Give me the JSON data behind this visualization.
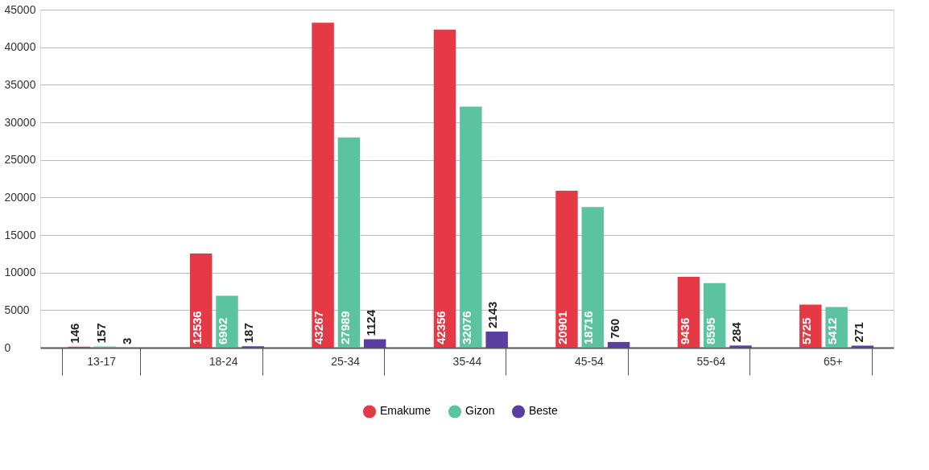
{
  "chart_data": {
    "type": "bar",
    "categories": [
      "13-17",
      "18-24",
      "25-34",
      "35-44",
      "45-54",
      "55-64",
      "65+"
    ],
    "series": [
      {
        "name": "Emakume",
        "color": "#e63946",
        "values": [
          146,
          12536,
          43267,
          42356,
          20901,
          9436,
          5725
        ]
      },
      {
        "name": "Gizon",
        "color": "#5cc3a0",
        "values": [
          157,
          6902,
          27989,
          32076,
          18716,
          8595,
          5412
        ]
      },
      {
        "name": "Beste",
        "color": "#5b3fa0",
        "values": [
          3,
          187,
          1124,
          2143,
          760,
          284,
          271
        ]
      }
    ],
    "ylim": [
      0,
      45000
    ],
    "yticks": [
      0,
      5000,
      10000,
      15000,
      20000,
      25000,
      30000,
      35000,
      40000,
      45000
    ],
    "grid": "y",
    "legend": "bottom",
    "data_labels": true
  }
}
